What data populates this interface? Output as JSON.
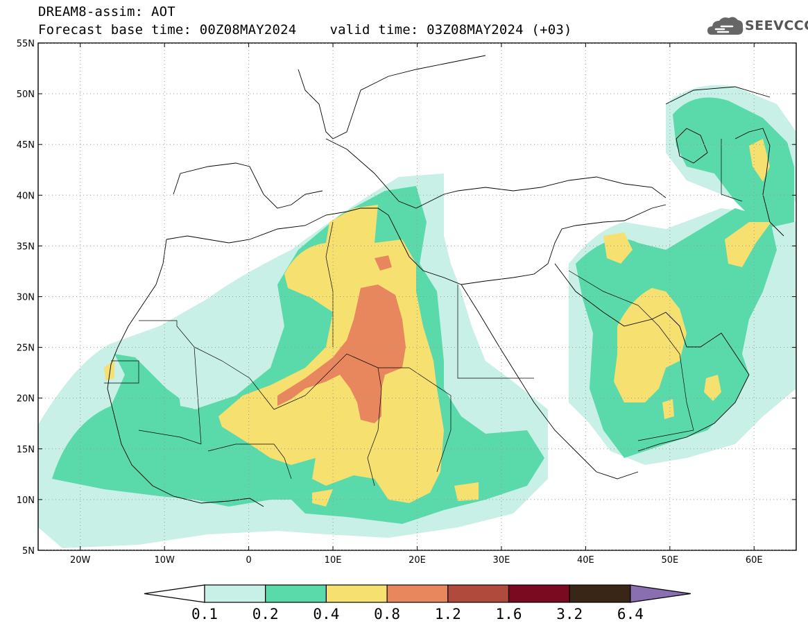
{
  "title": {
    "line1": "DREAM8-assim: AOT",
    "base_time": "Forecast base time: 00Z08MAY2024",
    "valid_time": "valid time: 03Z08MAY2024 (+03)"
  },
  "logo": {
    "text": "SEEVCCC",
    "icon": "cloud-icon"
  },
  "map": {
    "lon_range": [
      -25,
      65
    ],
    "lat_range": [
      5,
      55
    ],
    "grid": true,
    "lon_ticks": [
      {
        "value": -20,
        "label": "20W"
      },
      {
        "value": -10,
        "label": "10W"
      },
      {
        "value": 0,
        "label": "0"
      },
      {
        "value": 10,
        "label": "10E"
      },
      {
        "value": 20,
        "label": "20E"
      },
      {
        "value": 30,
        "label": "30E"
      },
      {
        "value": 40,
        "label": "40E"
      },
      {
        "value": 50,
        "label": "50E"
      },
      {
        "value": 60,
        "label": "60E"
      }
    ],
    "lat_ticks": [
      {
        "value": 5,
        "label": "5N"
      },
      {
        "value": 10,
        "label": "10N"
      },
      {
        "value": 15,
        "label": "15N"
      },
      {
        "value": 20,
        "label": "20N"
      },
      {
        "value": 25,
        "label": "25N"
      },
      {
        "value": 30,
        "label": "30N"
      },
      {
        "value": 35,
        "label": "35N"
      },
      {
        "value": 40,
        "label": "40N"
      },
      {
        "value": 45,
        "label": "45N"
      },
      {
        "value": 50,
        "label": "50N"
      },
      {
        "value": 55,
        "label": "55N"
      }
    ]
  },
  "colorbar": {
    "labels": [
      "0.1",
      "0.2",
      "0.4",
      "0.8",
      "1.2",
      "1.6",
      "3.2",
      "6.4"
    ],
    "colors": [
      "#ffffff",
      "#c8f0e6",
      "#5ad9aa",
      "#f5e070",
      "#e8875e",
      "#b04a3c",
      "#7a0a20",
      "#3a2616",
      "#8a6fb0"
    ]
  }
}
